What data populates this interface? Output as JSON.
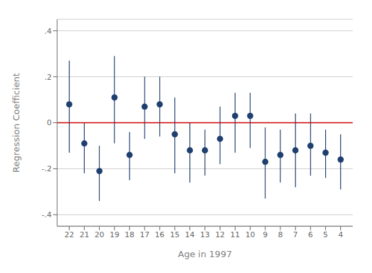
{
  "chart_data": {
    "type": "scatter",
    "xlabel": "Age in 1997",
    "ylabel": "Regression Coefficient",
    "x": [
      22,
      21,
      20,
      19,
      18,
      17,
      16,
      15,
      14,
      13,
      12,
      11,
      10,
      9,
      8,
      7,
      6,
      5,
      4
    ],
    "values": [
      0.08,
      -0.09,
      -0.21,
      0.11,
      -0.14,
      0.07,
      0.08,
      -0.05,
      -0.12,
      -0.12,
      -0.07,
      0.03,
      0.03,
      -0.17,
      -0.14,
      -0.12,
      -0.1,
      -0.13,
      -0.16
    ],
    "ci_lower": [
      -0.13,
      -0.22,
      -0.34,
      -0.09,
      -0.25,
      -0.07,
      -0.06,
      -0.22,
      -0.26,
      -0.23,
      -0.18,
      -0.13,
      -0.11,
      -0.33,
      -0.26,
      -0.28,
      -0.23,
      -0.24,
      -0.29
    ],
    "ci_upper": [
      0.27,
      -0.0,
      -0.1,
      0.29,
      -0.04,
      0.2,
      0.2,
      0.11,
      0.0,
      -0.03,
      0.07,
      0.13,
      0.13,
      -0.02,
      -0.03,
      0.04,
      0.04,
      -0.03,
      -0.05
    ],
    "color": "#1F3F6E",
    "xlim": [
      22.8,
      3.2
    ],
    "xticks": [
      22,
      21,
      20,
      19,
      18,
      17,
      16,
      15,
      14,
      13,
      12,
      11,
      10,
      9,
      8,
      7,
      6,
      5,
      4
    ],
    "ylim": [
      -0.45,
      0.45
    ],
    "yticks": [
      {
        "value": -0.4,
        "label": "-.4"
      },
      {
        "value": -0.2,
        "label": "-.2"
      },
      0,
      {
        "value": 0.2,
        "label": ".2"
      },
      {
        "value": 0.4,
        "label": ".4"
      }
    ],
    "grid": true,
    "hlines": [
      {
        "y": 0,
        "color": "#CC0000"
      }
    ]
  }
}
